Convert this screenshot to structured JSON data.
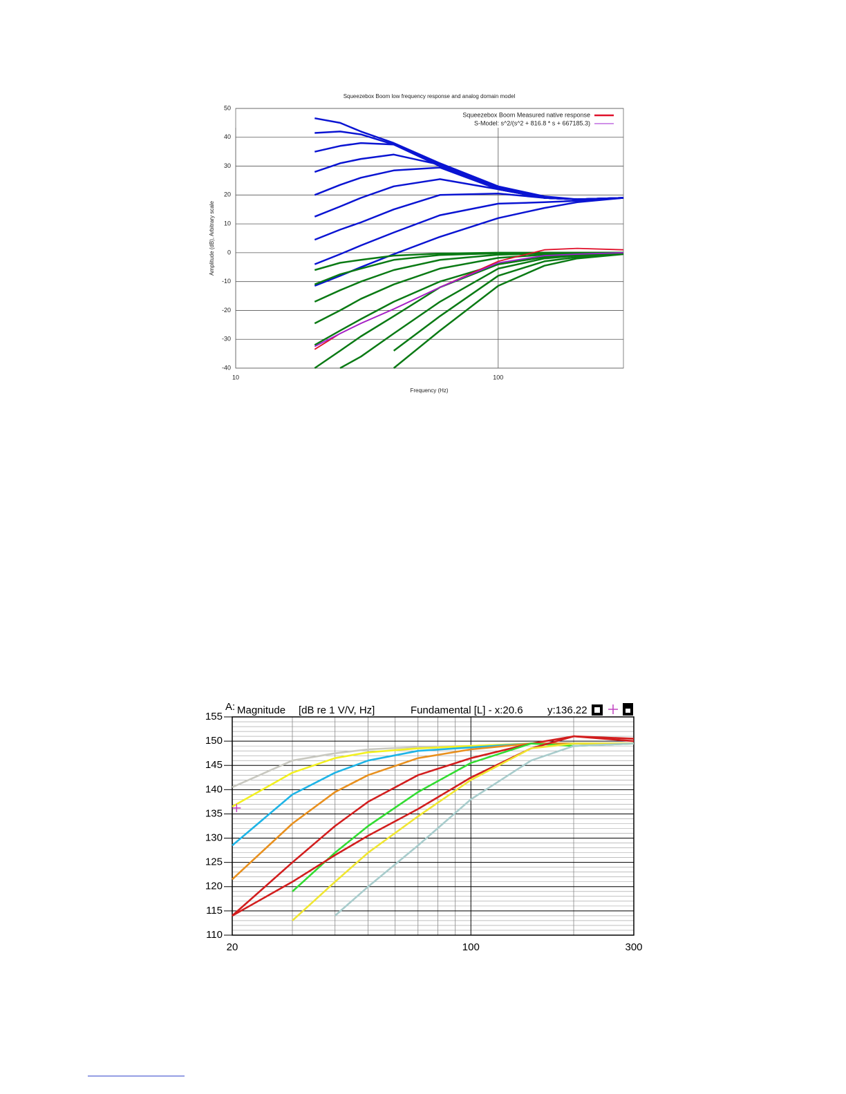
{
  "chart_data": [
    {
      "type": "line",
      "title": "Squeezebox Boom low frequency response and analog domain model",
      "x_label": "Frequency (Hz)",
      "y_label": "Amplitude (dB), Arbitrary scale",
      "log_x": true,
      "xlim": [
        10,
        300
      ],
      "xticks": [
        10,
        100
      ],
      "ylim": [
        -40,
        50
      ],
      "yticks": [
        -40,
        -30,
        -20,
        -10,
        0,
        10,
        20,
        30,
        40,
        50
      ],
      "grid": true,
      "legend": "upper right",
      "x": [
        20,
        25,
        30,
        40,
        60,
        100,
        150,
        200,
        300
      ],
      "series": [
        {
          "color": "#0a14d2",
          "values": [
            46.6,
            45,
            42,
            38,
            31,
            23,
            19.5,
            18.5,
            19
          ]
        },
        {
          "color": "#0a14d2",
          "values": [
            41.5,
            42,
            41,
            37.5,
            30.5,
            22.5,
            19,
            18.5,
            19
          ]
        },
        {
          "color": "#0a14d2",
          "values": [
            35,
            37,
            38,
            37.5,
            30,
            22,
            19,
            18.5,
            19
          ]
        },
        {
          "color": "#0a14d2",
          "values": [
            28,
            31,
            32.5,
            34,
            30.5,
            22,
            19,
            18.5,
            19
          ]
        },
        {
          "color": "#0a14d2",
          "values": [
            20,
            23.5,
            26,
            28.5,
            29.5,
            22,
            19,
            18.5,
            19
          ]
        },
        {
          "color": "#0a14d2",
          "values": [
            12.5,
            16,
            19,
            23,
            25.5,
            22,
            19,
            18.5,
            19
          ]
        },
        {
          "color": "#0a14d2",
          "values": [
            4.5,
            8,
            10.5,
            15,
            20,
            20.5,
            19,
            18.5,
            19
          ]
        },
        {
          "color": "#0a14d2",
          "values": [
            -4,
            -0.5,
            2.5,
            7,
            13,
            17,
            17.5,
            18,
            19
          ]
        },
        {
          "color": "#0a14d2",
          "values": [
            -11.5,
            -8,
            -5,
            -0.5,
            5.5,
            12,
            15.5,
            17.5,
            19
          ]
        },
        {
          "color": "#0a7a14",
          "values": [
            -6,
            -3.5,
            -2.5,
            -1,
            -0.3,
            0,
            0,
            0,
            0
          ]
        },
        {
          "color": "#0a7a14",
          "values": [
            -11,
            -7.5,
            -5.5,
            -2.5,
            -0.8,
            -0.2,
            0,
            0,
            0
          ]
        },
        {
          "color": "#0a7a14",
          "values": [
            -17,
            -13,
            -10,
            -6,
            -2.5,
            -0.7,
            -0.3,
            -0.1,
            0
          ]
        },
        {
          "color": "#0a7a14",
          "values": [
            -24.5,
            -20,
            -16,
            -11,
            -5.5,
            -1.8,
            -0.7,
            -0.3,
            0
          ]
        },
        {
          "color": "#0a7a14",
          "values": [
            -32,
            -27,
            -23,
            -17,
            -10,
            -4,
            -1.5,
            -0.7,
            -0.3
          ]
        },
        {
          "color": "#0a7a14",
          "values": [
            -40,
            -34,
            -29,
            -22,
            -12,
            -4,
            -1.5,
            -0.7,
            0
          ]
        },
        {
          "color": "#0a7a14",
          "values": [
            null,
            -40,
            -36,
            -28,
            -17,
            -5.5,
            -2,
            -1,
            -0.2
          ]
        },
        {
          "color": "#0a7a14",
          "values": [
            null,
            null,
            null,
            -34,
            -22,
            -8,
            -3,
            -1.5,
            -0.3
          ]
        },
        {
          "color": "#0a7a14",
          "values": [
            null,
            null,
            null,
            -40,
            -27,
            -11.5,
            -4.5,
            -2,
            -0.5
          ]
        },
        {
          "name": "Squeezebox Boom Measured native response",
          "color": "#e0102a",
          "values": [
            -33.5,
            -28,
            -24.5,
            -19.5,
            -12,
            -3,
            1,
            1.5,
            1
          ]
        },
        {
          "name": "S-Model: s^2/(s^2 + 816.8 * s + 667185.3)",
          "color": "#a020d0",
          "values": [
            -32.5,
            -28,
            -24.5,
            -19.5,
            -12,
            -3.5,
            -1,
            -0.5,
            0
          ]
        }
      ]
    },
    {
      "type": "line",
      "header": [
        "A:",
        "Magnitude",
        "[dB re 1 V/V, Hz]",
        "Fundamental [L] - x:20.6",
        "y:136.22"
      ],
      "cursor": {
        "x": 20.6,
        "y": 136.22
      },
      "log_x": true,
      "xlim": [
        20,
        300
      ],
      "xticks": [
        20,
        100,
        300
      ],
      "minor_xticks": [
        30,
        40,
        50,
        60,
        70,
        80,
        90,
        200
      ],
      "ylim": [
        110,
        155
      ],
      "yticks": [
        110,
        115,
        120,
        125,
        130,
        135,
        140,
        145,
        150,
        155
      ],
      "grid": true,
      "x": [
        20,
        30,
        40,
        50,
        70,
        100,
        150,
        200,
        300
      ],
      "series": [
        {
          "color": "#c8c8c0",
          "values": [
            140.5,
            146,
            147.5,
            148.3,
            148.8,
            149,
            149.5,
            149.5,
            149.5
          ]
        },
        {
          "color": "#f2f020",
          "values": [
            136.5,
            143.5,
            146.5,
            147.7,
            148.5,
            149,
            149.5,
            149.5,
            149.5
          ]
        },
        {
          "color": "#1eb4e6",
          "values": [
            128.5,
            139,
            143.5,
            146,
            148,
            148.7,
            149.5,
            149.5,
            149.5
          ]
        },
        {
          "color": "#e8901e",
          "values": [
            121.5,
            133,
            139.5,
            143,
            146.5,
            148.3,
            149.5,
            149.5,
            149.5
          ]
        },
        {
          "color": "#d21e1e",
          "values": [
            114,
            125,
            132.5,
            137.5,
            143,
            146.5,
            149.5,
            151,
            150
          ]
        },
        {
          "color": "#32dc32",
          "values": [
            null,
            119,
            127,
            132.5,
            139.5,
            145.5,
            149.5,
            149,
            149.5
          ]
        },
        {
          "color": "#d21e1e",
          "values": [
            114,
            121,
            126.5,
            130.5,
            136,
            142.5,
            148.5,
            151,
            150.5
          ]
        },
        {
          "color": "#f0e632",
          "values": [
            null,
            113,
            121,
            127,
            134.5,
            142,
            148.5,
            149.5,
            149.5
          ]
        },
        {
          "color": "#a8cccc",
          "values": [
            null,
            null,
            114,
            120,
            128.5,
            138,
            146,
            149,
            149.5
          ]
        }
      ]
    }
  ]
}
